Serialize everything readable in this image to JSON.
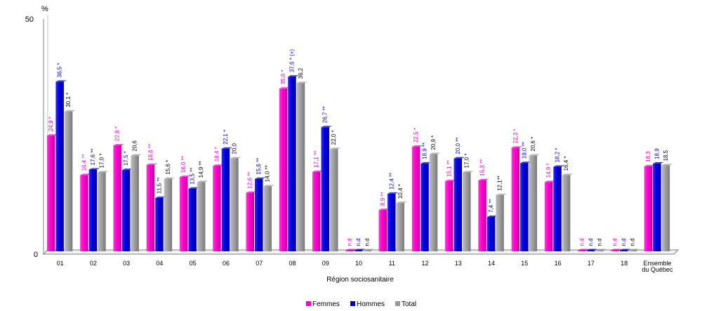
{
  "chart_data": {
    "type": "bar",
    "ylabel": "%",
    "xlabel": "Région sociosanitaire",
    "ylim": [
      0,
      50
    ],
    "yticks": [
      0,
      50
    ],
    "grid": false,
    "legend_position": "bottom",
    "categories": [
      "01",
      "02",
      "03",
      "04",
      "05",
      "06",
      "07",
      "08",
      "09",
      "10",
      "11",
      "12",
      "13",
      "14",
      "15",
      "16",
      "17",
      "18",
      "Ensemble du Québec"
    ],
    "category_lines": [
      [
        "01"
      ],
      [
        "02"
      ],
      [
        "03"
      ],
      [
        "04"
      ],
      [
        "05"
      ],
      [
        "06"
      ],
      [
        "07"
      ],
      [
        "08"
      ],
      [
        "09"
      ],
      [
        "10"
      ],
      [
        "11"
      ],
      [
        "12"
      ],
      [
        "13"
      ],
      [
        "14"
      ],
      [
        "15"
      ],
      [
        "16"
      ],
      [
        "17"
      ],
      [
        "18"
      ],
      [
        "Ensemble",
        "du Québec"
      ]
    ],
    "series": [
      {
        "name": "Femmes",
        "color": "#ff00cc",
        "values": [
          24.9,
          16.4,
          22.8,
          18.6,
          16.0,
          18.4,
          12.6,
          35.0,
          17.1,
          null,
          8.9,
          22.5,
          15.1,
          15.3,
          22.3,
          14.9,
          null,
          null,
          18.3
        ],
        "labels": [
          "24,9 *",
          "16,4 **",
          "22,8 *",
          "18,6 **",
          "16,0 **",
          "18,4 *",
          "12,6 **",
          "35,0 *",
          "17,1 **",
          "n.d",
          "8,9 **",
          "22,5 *",
          "15,1 **",
          "15,3 **",
          "22,3 *",
          "14,9 *",
          "n.d",
          "n.d",
          "18,3"
        ]
      },
      {
        "name": "Hommes",
        "color": "#0000cc",
        "values": [
          36.5,
          17.6,
          17.5,
          11.5,
          13.5,
          22.1,
          15.6,
          37.6,
          26.7,
          null,
          12.4,
          18.9,
          20.0,
          7.4,
          19.0,
          18.2,
          null,
          null,
          18.9
        ],
        "labels": [
          "36,5 *",
          "17,6 **",
          "17,5 *",
          "11,5 **",
          "13,5 **",
          "22,1 *",
          "15,6 **",
          "37,6 * (+)",
          "26,7 **",
          "n.d",
          "12,4 **",
          "18,9 **",
          "20,0 **",
          "7,4 **",
          "19,0 **",
          "18,2 *",
          "n.d",
          "n.d",
          "18,9"
        ]
      },
      {
        "name": "Total",
        "color": "#999999",
        "values": [
          30.1,
          17.0,
          20.6,
          15.6,
          14.9,
          20.0,
          14.0,
          36.2,
          22.0,
          null,
          10.4,
          20.9,
          17.0,
          12.1,
          20.6,
          16.4,
          null,
          null,
          18.5
        ],
        "labels": [
          "30,1 *",
          "17,0 *",
          "20,6",
          "15,6 *",
          "14,9 **",
          "20,0",
          "14,0 **",
          "36,2",
          "22,0 *",
          "n.d",
          "10,4 *",
          "20,9 *",
          "17,0 *",
          "12,1**",
          "20,6 *",
          "16,4 *",
          "n.d",
          "n.d",
          "18,5"
        ]
      }
    ]
  }
}
